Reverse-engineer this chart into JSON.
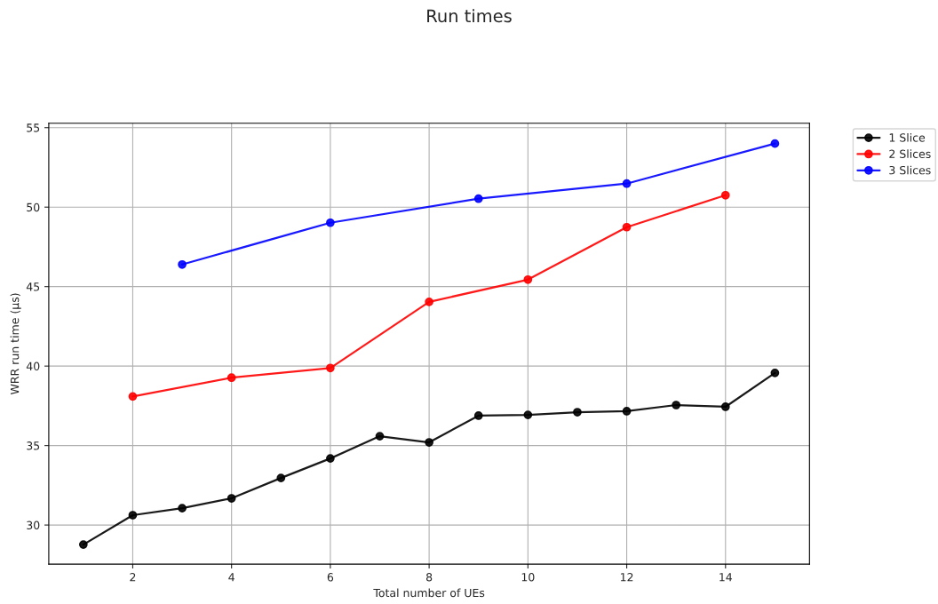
{
  "chart_data": {
    "type": "line",
    "title": "Run times",
    "xlabel": "Total number of UEs",
    "ylabel": "WRR run time (µs)",
    "series": [
      {
        "name": "1 Slice",
        "color": "#000000",
        "x": [
          1,
          2,
          3,
          4,
          5,
          6,
          7,
          8,
          9,
          10,
          11,
          12,
          13,
          14,
          15
        ],
        "values": [
          28.77,
          30.62,
          31.06,
          31.68,
          32.96,
          34.19,
          35.59,
          35.2,
          36.88,
          36.93,
          37.1,
          37.16,
          37.55,
          37.44,
          39.57
        ]
      },
      {
        "name": "2 Slices",
        "color": "#ff0000",
        "x": [
          2,
          4,
          6,
          8,
          10,
          12,
          14
        ],
        "values": [
          38.09,
          39.27,
          39.88,
          44.04,
          45.44,
          48.74,
          50.75
        ]
      },
      {
        "name": "3 Slices",
        "color": "#0000ff",
        "x": [
          3,
          6,
          9,
          12,
          15
        ],
        "values": [
          46.39,
          49.02,
          50.53,
          51.48,
          54.0
        ]
      }
    ],
    "xlim": [
      0.3,
      15.7
    ],
    "ylim": [
      27.54,
      55.28
    ],
    "xticks": [
      2,
      4,
      6,
      8,
      10,
      12,
      14
    ],
    "yticks": [
      30,
      35,
      40,
      45,
      50,
      55
    ],
    "grid": true,
    "legend": "top right",
    "marker": "circle",
    "line_style": "solid"
  }
}
